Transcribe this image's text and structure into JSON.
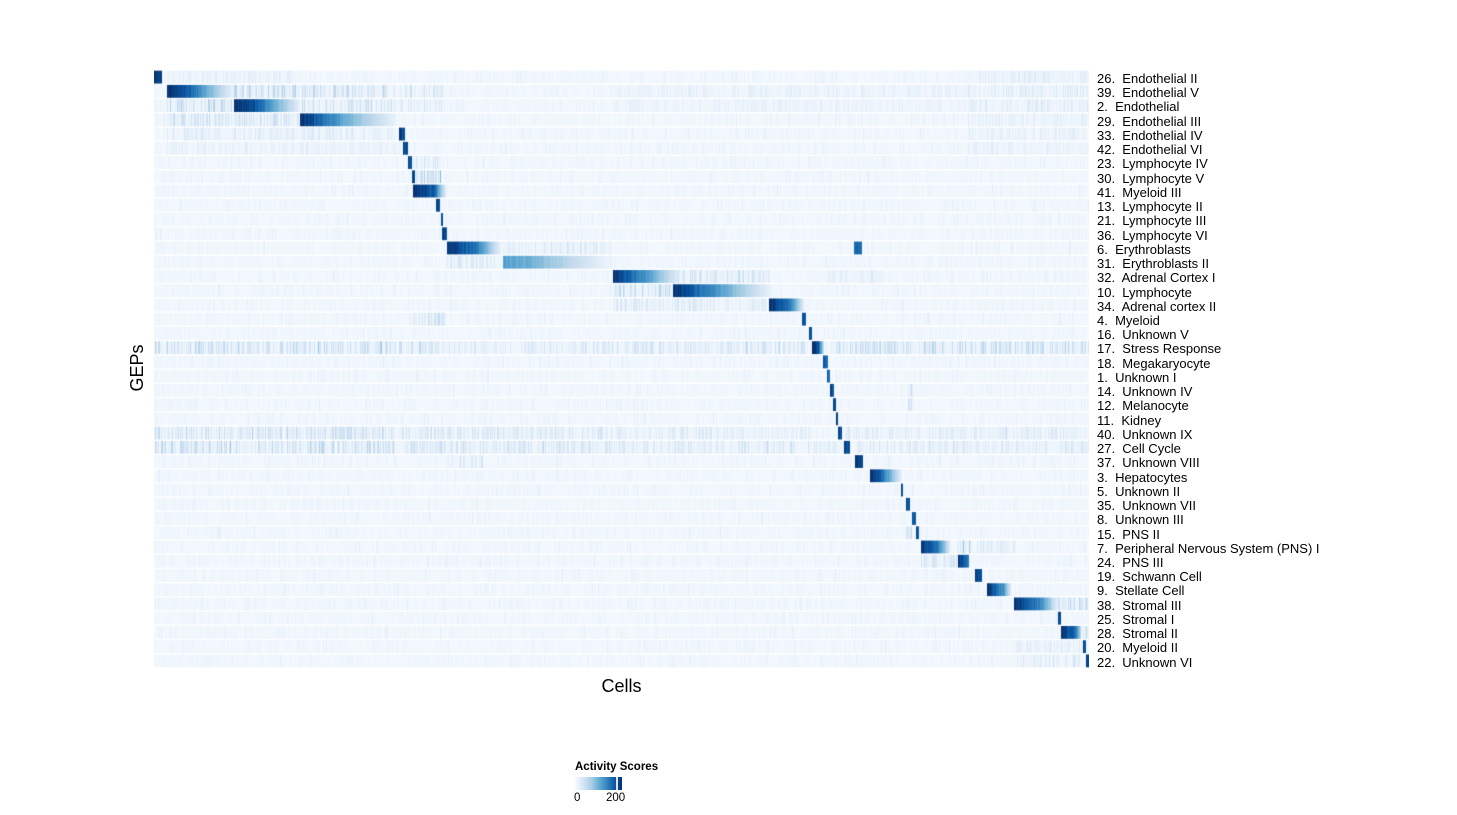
{
  "figure": {
    "xlabel": "Cells",
    "ylabel": "GEPs"
  },
  "legend": {
    "title": "Activity Scores",
    "tick_min": "0",
    "tick_max": "200",
    "tick_max_frac": 0.88
  },
  "chart_data": {
    "type": "heatmap",
    "xlabel": "Cells",
    "ylabel": "GEPs",
    "colorbar_title": "Activity Scores",
    "colorbar_ticks": [
      {
        "label": "0",
        "value": 0,
        "frac": 0.0
      },
      {
        "label": "200",
        "value": 200,
        "frac": 0.88
      }
    ],
    "colormap": "Blues",
    "colormap_stops": [
      "#f7fbff",
      "#deebf7",
      "#c6dbef",
      "#9ecae1",
      "#6baed6",
      "#4292c6",
      "#2171b5",
      "#08519c",
      "#08306b"
    ],
    "n_rows": 42,
    "rows": [
      {
        "label": "26.  Endothelial II",
        "blocks": [
          [
            0.0,
            0.008,
            1.0,
            0.92
          ]
        ],
        "stripes": [
          [
            0.013,
            0.155,
            0.1
          ],
          [
            0.87,
            1.0,
            0.12
          ]
        ]
      },
      {
        "label": "39.  Endothelial V",
        "blocks": [
          [
            0.013,
            0.032,
            1.0,
            0.88
          ],
          [
            0.032,
            0.083,
            0.88,
            0.1
          ]
        ],
        "stripes": [
          [
            0.085,
            0.155,
            0.3
          ],
          [
            0.156,
            0.258,
            0.28
          ],
          [
            0.261,
            0.31,
            0.18
          ],
          [
            0.49,
            0.87,
            0.09
          ],
          [
            0.87,
            1.0,
            0.14
          ]
        ]
      },
      {
        "label": "2.  Endothelial",
        "blocks": [
          [
            0.085,
            0.106,
            1.0,
            0.88
          ],
          [
            0.106,
            0.155,
            0.88,
            0.1
          ]
        ],
        "stripes": [
          [
            0.013,
            0.083,
            0.32
          ],
          [
            0.156,
            0.258,
            0.22
          ],
          [
            0.261,
            0.31,
            0.16
          ],
          [
            0.49,
            0.87,
            0.08
          ],
          [
            0.87,
            1.0,
            0.13
          ]
        ]
      },
      {
        "label": "29.  Endothelial III",
        "blocks": [
          [
            0.156,
            0.205,
            1.0,
            0.5
          ],
          [
            0.205,
            0.258,
            0.5,
            0.07
          ]
        ],
        "stripes": [
          [
            0.013,
            0.083,
            0.24
          ],
          [
            0.085,
            0.155,
            0.24
          ],
          [
            0.87,
            1.0,
            0.1
          ]
        ]
      },
      {
        "label": "33.  Endothelial IV",
        "blocks": [
          [
            0.261,
            0.268,
            0.95,
            0.88
          ]
        ],
        "stripes": [
          [
            0.013,
            0.258,
            0.14
          ],
          [
            0.87,
            1.0,
            0.1
          ]
        ]
      },
      {
        "label": "42.  Endothelial VI",
        "blocks": [
          [
            0.266,
            0.271,
            0.92,
            0.86
          ]
        ],
        "stripes": [
          [
            0.013,
            0.258,
            0.09
          ],
          [
            0.87,
            1.0,
            0.09
          ]
        ]
      },
      {
        "label": "23.  Lymphocyte IV",
        "blocks": [
          [
            0.271,
            0.275,
            0.92,
            0.86
          ]
        ],
        "stripes": [
          [
            0.277,
            0.306,
            0.18
          ]
        ]
      },
      {
        "label": "30.  Lymphocyte V",
        "blocks": [
          [
            0.2755,
            0.279,
            0.92,
            0.86
          ]
        ],
        "stripes": [
          [
            0.279,
            0.306,
            0.32
          ]
        ]
      },
      {
        "label": "41.  Myeloid III",
        "blocks": [
          [
            0.277,
            0.299,
            1.0,
            0.82
          ],
          [
            0.299,
            0.312,
            0.82,
            0.08
          ]
        ],
        "stripes": []
      },
      {
        "label": "13.  Lymphocyte II",
        "blocks": [
          [
            0.3015,
            0.3055,
            0.92,
            0.86
          ]
        ],
        "stripes": []
      },
      {
        "label": "21.  Lymphocyte III",
        "blocks": [
          [
            0.306,
            0.309,
            0.92,
            0.86
          ]
        ],
        "stripes": []
      },
      {
        "label": "36.  Lymphocyte VI",
        "blocks": [
          [
            0.308,
            0.313,
            0.92,
            0.86
          ]
        ],
        "stripes": []
      },
      {
        "label": "6.  Erythroblasts",
        "blocks": [
          [
            0.313,
            0.345,
            1.0,
            0.72
          ],
          [
            0.345,
            0.37,
            0.72,
            0.08
          ],
          [
            0.748,
            0.757,
            0.82,
            0.76
          ]
        ],
        "stripes": [
          [
            0.37,
            0.49,
            0.14
          ]
        ]
      },
      {
        "label": "31.  Erythroblasts II",
        "blocks": [
          [
            0.373,
            0.4,
            0.55,
            0.5
          ],
          [
            0.4,
            0.487,
            0.5,
            0.05
          ]
        ],
        "stripes": [
          [
            0.313,
            0.37,
            0.18
          ]
        ]
      },
      {
        "label": "32.  Adrenal Cortex I",
        "blocks": [
          [
            0.49,
            0.53,
            1.0,
            0.55
          ],
          [
            0.53,
            0.562,
            0.55,
            0.08
          ]
        ],
        "stripes": [
          [
            0.554,
            0.658,
            0.22
          ],
          [
            0.72,
            0.78,
            0.12
          ]
        ]
      },
      {
        "label": "10.  Lymphocyte",
        "blocks": [
          [
            0.555,
            0.585,
            1.0,
            0.75
          ],
          [
            0.585,
            0.66,
            0.75,
            0.06
          ]
        ],
        "stripes": [
          [
            0.49,
            0.554,
            0.28
          ]
        ]
      },
      {
        "label": "34.  Adrenal cortex II",
        "blocks": [
          [
            0.657,
            0.681,
            1.0,
            0.7
          ],
          [
            0.681,
            0.695,
            0.7,
            0.08
          ]
        ],
        "stripes": [
          [
            0.49,
            0.655,
            0.16
          ]
        ]
      },
      {
        "label": "4.  Myeloid",
        "blocks": [
          [
            0.692,
            0.697,
            0.92,
            0.86
          ]
        ],
        "stripes": [
          [
            0.277,
            0.312,
            0.2
          ]
        ]
      },
      {
        "label": "16.  Unknown V",
        "blocks": [
          [
            0.6995,
            0.7035,
            0.92,
            0.86
          ]
        ],
        "stripes": []
      },
      {
        "label": "17.  Stress Response",
        "blocks": [
          [
            0.7037,
            0.71,
            1.0,
            0.88
          ],
          [
            0.71,
            0.716,
            0.88,
            0.18
          ]
        ],
        "stripes": [
          [
            0.0,
            0.258,
            0.28
          ],
          [
            0.261,
            0.313,
            0.22
          ],
          [
            0.313,
            0.49,
            0.16
          ],
          [
            0.49,
            0.7,
            0.2
          ],
          [
            0.724,
            1.0,
            0.28
          ]
        ]
      },
      {
        "label": "18.  Megakaryocyte",
        "blocks": [
          [
            0.7155,
            0.72,
            0.85,
            0.78
          ]
        ],
        "stripes": []
      },
      {
        "label": "1.  Unknown I",
        "blocks": [
          [
            0.7195,
            0.7225,
            0.8,
            0.74
          ]
        ],
        "stripes": []
      },
      {
        "label": "14.  Unknown IV",
        "blocks": [
          [
            0.7225,
            0.7265,
            0.92,
            0.86
          ]
        ],
        "stripes": [
          [
            0.806,
            0.8115,
            0.35
          ]
        ]
      },
      {
        "label": "12.  Melanocyte",
        "blocks": [
          [
            0.7255,
            0.7285,
            0.92,
            0.86
          ]
        ],
        "stripes": [
          [
            0.806,
            0.8115,
            0.25
          ]
        ]
      },
      {
        "label": "11.  Kidney",
        "blocks": [
          [
            0.7285,
            0.7315,
            0.92,
            0.86
          ]
        ],
        "stripes": []
      },
      {
        "label": "40.  Unknown IX",
        "blocks": [
          [
            0.7315,
            0.7355,
            0.92,
            0.86
          ]
        ],
        "stripes": [
          [
            0.0,
            0.258,
            0.26
          ],
          [
            0.261,
            0.49,
            0.18
          ],
          [
            0.49,
            0.7,
            0.14
          ],
          [
            0.74,
            1.0,
            0.14
          ]
        ]
      },
      {
        "label": "27.  Cell Cycle",
        "blocks": [
          [
            0.737,
            0.7435,
            1.0,
            0.84
          ]
        ],
        "stripes": [
          [
            0.0,
            0.258,
            0.3
          ],
          [
            0.261,
            0.49,
            0.22
          ],
          [
            0.49,
            0.73,
            0.18
          ],
          [
            0.75,
            1.0,
            0.16
          ]
        ]
      },
      {
        "label": "37.  Unknown VIII",
        "blocks": [
          [
            0.749,
            0.758,
            1.0,
            0.88
          ]
        ],
        "stripes": [
          [
            0.313,
            0.352,
            0.14
          ]
        ]
      },
      {
        "label": "3.  Hepatocytes",
        "blocks": [
          [
            0.765,
            0.778,
            1.0,
            0.78
          ],
          [
            0.778,
            0.798,
            0.78,
            0.12
          ]
        ],
        "stripes": []
      },
      {
        "label": "5.  Unknown II",
        "blocks": [
          [
            0.798,
            0.801,
            0.92,
            0.86
          ]
        ],
        "stripes": []
      },
      {
        "label": "35.  Unknown VII",
        "blocks": [
          [
            0.804,
            0.808,
            0.92,
            0.86
          ]
        ],
        "stripes": []
      },
      {
        "label": "8.  Unknown III",
        "blocks": [
          [
            0.81,
            0.814,
            0.92,
            0.86
          ]
        ],
        "stripes": []
      },
      {
        "label": "15.  PNS II",
        "blocks": [
          [
            0.814,
            0.818,
            0.92,
            0.86
          ]
        ],
        "stripes": [
          [
            0.804,
            0.81,
            0.28
          ]
        ]
      },
      {
        "label": "7.  Peripheral Nervous System (PNS) I",
        "blocks": [
          [
            0.82,
            0.838,
            1.0,
            0.72
          ],
          [
            0.838,
            0.851,
            0.72,
            0.12
          ]
        ],
        "stripes": [
          [
            0.858,
            0.873,
            0.42
          ],
          [
            0.88,
            0.92,
            0.18
          ]
        ]
      },
      {
        "label": "24.  PNS III",
        "blocks": [
          [
            0.859,
            0.871,
            1.0,
            0.68
          ]
        ],
        "stripes": [
          [
            0.82,
            0.858,
            0.22
          ]
        ]
      },
      {
        "label": "19.  Schwann Cell",
        "blocks": [
          [
            0.878,
            0.8855,
            0.95,
            0.84
          ]
        ],
        "stripes": []
      },
      {
        "label": "9.  Stellate Cell",
        "blocks": [
          [
            0.89,
            0.908,
            1.0,
            0.6
          ],
          [
            0.908,
            0.916,
            0.6,
            0.12
          ]
        ],
        "stripes": []
      },
      {
        "label": "38.  Stromal III",
        "blocks": [
          [
            0.919,
            0.95,
            1.0,
            0.62
          ],
          [
            0.95,
            0.966,
            0.62,
            0.08
          ]
        ],
        "stripes": [
          [
            0.966,
            1.0,
            0.28
          ]
        ]
      },
      {
        "label": "25.  Stromal I",
        "blocks": [
          [
            0.966,
            0.969,
            0.92,
            0.86
          ]
        ],
        "stripes": []
      },
      {
        "label": "28.  Stromal II",
        "blocks": [
          [
            0.97,
            0.985,
            1.0,
            0.78
          ],
          [
            0.985,
            0.991,
            0.78,
            0.28
          ]
        ],
        "stripes": [
          [
            0.992,
            1.0,
            0.22
          ]
        ]
      },
      {
        "label": "20.  Myeloid II",
        "blocks": [
          [
            0.9935,
            0.996,
            0.92,
            0.86
          ]
        ],
        "stripes": [
          [
            0.92,
            0.99,
            0.14
          ]
        ]
      },
      {
        "label": "22.  Unknown VI",
        "blocks": [
          [
            0.996,
            1.0,
            1.0,
            0.94
          ]
        ],
        "stripes": [
          [
            0.92,
            0.99,
            0.16
          ]
        ]
      }
    ]
  }
}
